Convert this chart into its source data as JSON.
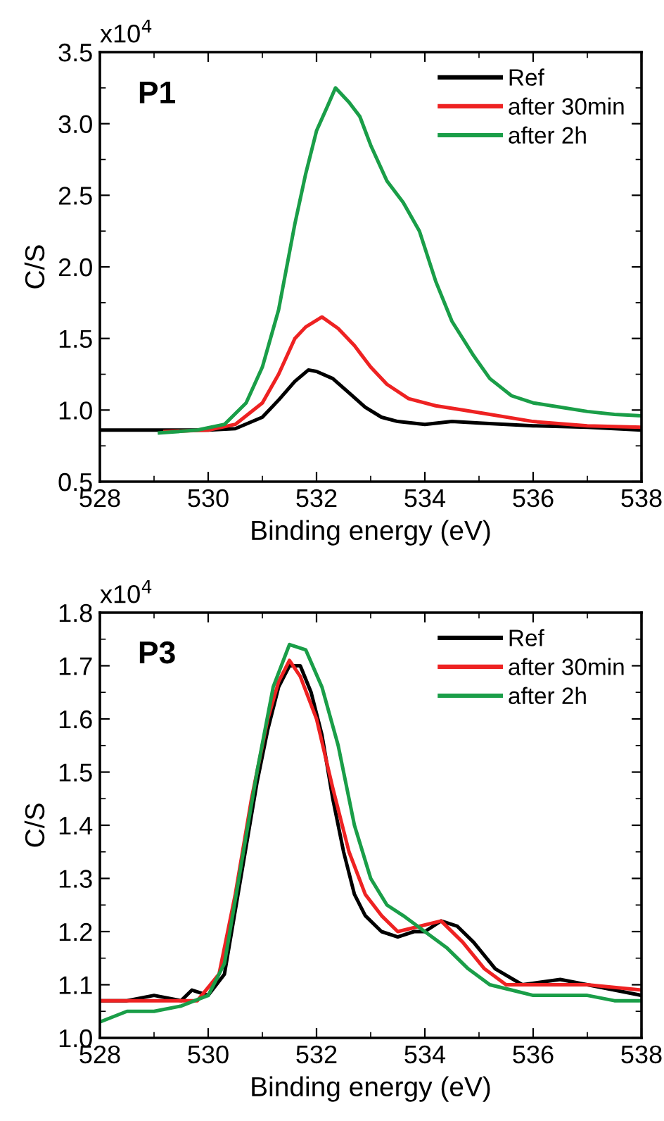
{
  "chart_data": [
    {
      "type": "line",
      "xlabel": "Binding energy (eV)",
      "ylabel": "C/S",
      "annotations": [
        "P1",
        "x10$^{4}$"
      ],
      "legend": "top right",
      "grid": false,
      "marker": "none",
      "line_style": "solid",
      "xlim": [
        528,
        538
      ],
      "xticks": [
        528,
        530,
        532,
        534,
        536,
        538
      ],
      "ylim": [
        0.5,
        3.5
      ],
      "yticks": [
        0.5,
        {
          "value": 1,
          "label": "1.0"
        },
        1.5,
        {
          "value": 2,
          "label": "2.0"
        },
        2.5,
        {
          "value": 3,
          "label": "3.0"
        },
        3.5
      ],
      "series": [
        {
          "name": "Ref",
          "color": "#000000",
          "x": [
            528,
            529,
            530,
            530.5,
            531,
            531.3,
            531.6,
            531.85,
            532,
            532.3,
            532.6,
            532.9,
            533.2,
            533.5,
            534,
            534.5,
            535,
            536,
            537,
            538
          ],
          "values": [
            0.86,
            0.86,
            0.86,
            0.87,
            0.95,
            1.07,
            1.2,
            1.28,
            1.27,
            1.22,
            1.12,
            1.02,
            0.95,
            0.92,
            0.9,
            0.92,
            0.91,
            0.89,
            0.88,
            0.86
          ]
        },
        {
          "name": "after 30min",
          "color": "#ee2222",
          "x": [
            529.2,
            530,
            530.5,
            531,
            531.3,
            531.6,
            531.8,
            532.1,
            532.4,
            532.7,
            533,
            533.3,
            533.7,
            534.2,
            534.7,
            535.2,
            536,
            537,
            538
          ],
          "values": [
            0.85,
            0.86,
            0.9,
            1.05,
            1.25,
            1.5,
            1.58,
            1.65,
            1.57,
            1.45,
            1.3,
            1.18,
            1.08,
            1.03,
            1.0,
            0.97,
            0.92,
            0.89,
            0.88
          ]
        },
        {
          "name": "after 2h",
          "color": "#1a9e48",
          "x": [
            529.1,
            529.8,
            530.3,
            530.7,
            531,
            531.3,
            531.6,
            531.8,
            532,
            532.2,
            532.35,
            532.6,
            532.8,
            533,
            533.3,
            533.6,
            533.9,
            534.2,
            534.5,
            534.9,
            535.2,
            535.6,
            536,
            536.5,
            537,
            537.5,
            538
          ],
          "values": [
            0.84,
            0.86,
            0.9,
            1.05,
            1.3,
            1.7,
            2.3,
            2.65,
            2.95,
            3.12,
            3.25,
            3.15,
            3.05,
            2.85,
            2.6,
            2.45,
            2.25,
            1.9,
            1.62,
            1.38,
            1.22,
            1.1,
            1.05,
            1.02,
            0.99,
            0.97,
            0.96
          ]
        }
      ]
    },
    {
      "type": "line",
      "xlabel": "Binding energy (eV)",
      "ylabel": "C/S",
      "annotations": [
        "P3",
        "x10$^{4}$"
      ],
      "legend": "top right",
      "grid": false,
      "marker": "none",
      "line_style": "solid",
      "xlim": [
        528,
        538
      ],
      "xticks": [
        528,
        530,
        532,
        534,
        536,
        538
      ],
      "ylim": [
        1.0,
        1.8
      ],
      "yticks": [
        {
          "value": 1,
          "label": "1.0"
        },
        1.1,
        1.2,
        1.3,
        1.4,
        1.5,
        1.6,
        1.7,
        1.8
      ],
      "series": [
        {
          "name": "Ref",
          "color": "#000000",
          "x": [
            528,
            528.5,
            529,
            529.5,
            529.7,
            530,
            530.3,
            530.6,
            530.9,
            531.1,
            531.3,
            531.5,
            531.7,
            531.9,
            532.1,
            532.3,
            532.5,
            532.7,
            532.9,
            533.2,
            533.5,
            533.8,
            534,
            534.3,
            534.6,
            534.9,
            535.3,
            535.8,
            536.5,
            537,
            537.5,
            538
          ],
          "values": [
            1.07,
            1.07,
            1.08,
            1.07,
            1.09,
            1.08,
            1.12,
            1.3,
            1.48,
            1.58,
            1.66,
            1.7,
            1.7,
            1.65,
            1.57,
            1.45,
            1.35,
            1.27,
            1.23,
            1.2,
            1.19,
            1.2,
            1.2,
            1.22,
            1.21,
            1.18,
            1.13,
            1.1,
            1.11,
            1.1,
            1.09,
            1.08
          ]
        },
        {
          "name": "after 30min",
          "color": "#ee2222",
          "x": [
            528,
            529,
            529.8,
            530.2,
            530.5,
            530.8,
            531.1,
            531.3,
            531.5,
            531.7,
            532,
            532.3,
            532.6,
            532.9,
            533.2,
            533.5,
            533.9,
            534.3,
            534.7,
            535.1,
            535.5,
            536,
            537,
            538
          ],
          "values": [
            1.07,
            1.07,
            1.07,
            1.12,
            1.27,
            1.45,
            1.6,
            1.67,
            1.71,
            1.68,
            1.6,
            1.47,
            1.35,
            1.27,
            1.23,
            1.2,
            1.21,
            1.22,
            1.18,
            1.13,
            1.1,
            1.1,
            1.1,
            1.09
          ]
        },
        {
          "name": "after 2h",
          "color": "#1a9e48",
          "x": [
            528,
            528.5,
            529,
            529.5,
            530,
            530.3,
            530.6,
            530.9,
            531.2,
            531.5,
            531.8,
            532.1,
            532.4,
            532.7,
            533,
            533.3,
            533.6,
            534,
            534.4,
            534.8,
            535.2,
            535.6,
            536,
            537,
            537.5,
            538
          ],
          "values": [
            1.03,
            1.05,
            1.05,
            1.06,
            1.08,
            1.14,
            1.32,
            1.5,
            1.66,
            1.74,
            1.73,
            1.66,
            1.55,
            1.4,
            1.3,
            1.25,
            1.23,
            1.2,
            1.17,
            1.13,
            1.1,
            1.09,
            1.08,
            1.08,
            1.07,
            1.07
          ]
        }
      ]
    }
  ]
}
